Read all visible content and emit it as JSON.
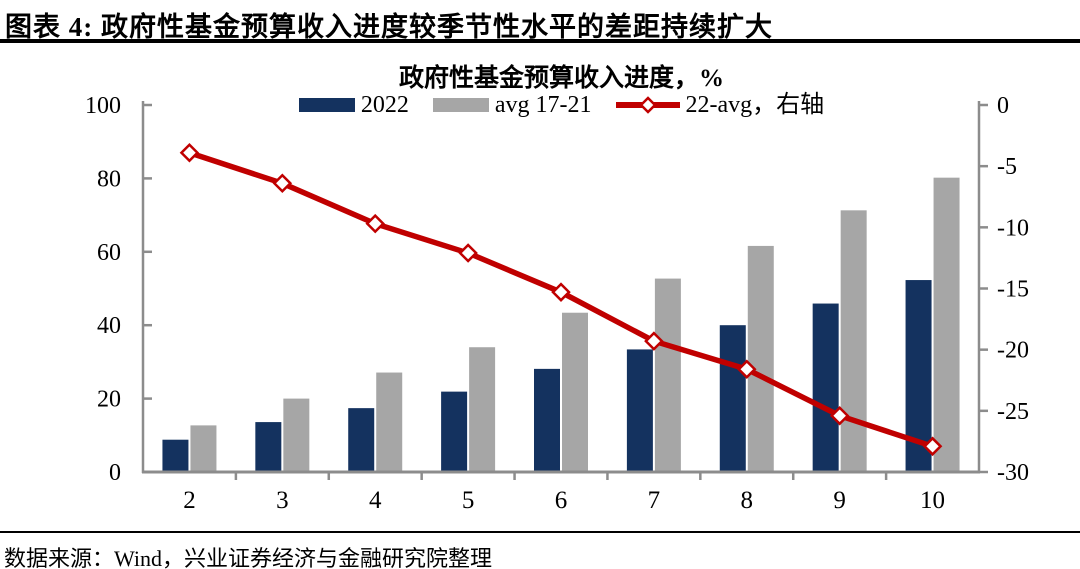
{
  "header": {
    "title": "图表 4: 政府性基金预算收入进度较季节性水平的差距持续扩大"
  },
  "footer": {
    "source": "数据来源：Wind，兴业证券经济与金融研究院整理"
  },
  "colors": {
    "bar_2022": "#14325F",
    "bar_avg": "#A6A6A6",
    "line_diff": "#C00000",
    "axis": "#8C8C8C",
    "text": "#000000"
  },
  "chart_data": {
    "type": "bar",
    "title": "政府性基金预算收入进度，%",
    "categories": [
      "2",
      "3",
      "4",
      "5",
      "6",
      "7",
      "8",
      "9",
      "10"
    ],
    "series": [
      {
        "name": "2022",
        "type": "bar",
        "axis": "left",
        "color": "#14325F",
        "values": [
          8.8,
          13.6,
          17.4,
          21.9,
          28.1,
          33.4,
          40.0,
          45.9,
          52.3
        ]
      },
      {
        "name": "avg 17-21",
        "type": "bar",
        "axis": "left",
        "color": "#A6A6A6",
        "values": [
          12.7,
          20.0,
          27.1,
          34.0,
          43.4,
          52.7,
          61.6,
          71.3,
          80.2
        ]
      },
      {
        "name": "22-avg，右轴",
        "type": "line",
        "axis": "right",
        "color": "#C00000",
        "values": [
          -3.9,
          -6.4,
          -9.7,
          -12.1,
          -15.3,
          -19.3,
          -21.6,
          -25.4,
          -27.9
        ]
      }
    ],
    "left_axis": {
      "min": 0,
      "max": 100,
      "ticks": [
        0,
        20,
        40,
        60,
        80,
        100
      ]
    },
    "right_axis": {
      "min": -30,
      "max": 0,
      "ticks": [
        0,
        -5,
        -10,
        -15,
        -20,
        -25,
        -30
      ]
    },
    "legend_position": "top",
    "grid": false
  }
}
